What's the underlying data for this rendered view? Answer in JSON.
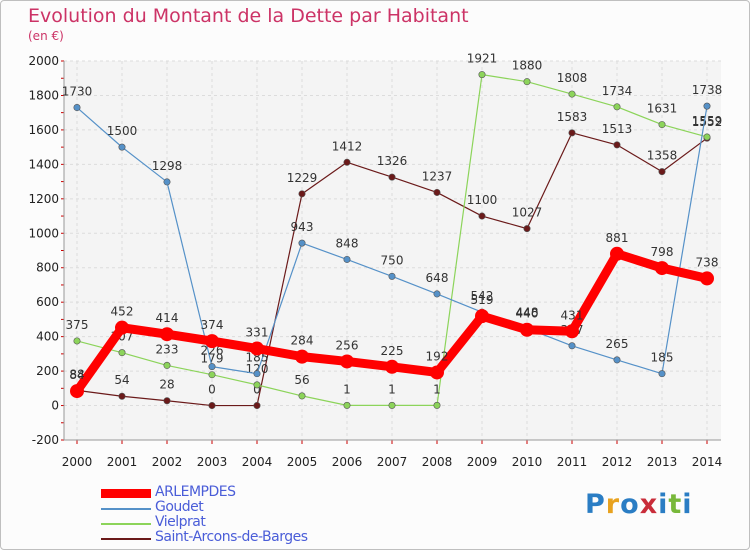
{
  "title": "Evolution du Montant de la Dette par Habitant",
  "subtitle": "(en €)",
  "logo": {
    "letters": [
      {
        "ch": "P",
        "color": "#2a7dc4"
      },
      {
        "ch": "r",
        "color": "#e8a21f"
      },
      {
        "ch": "o",
        "color": "#2a7dc4"
      },
      {
        "ch": "x",
        "color": "#c92d3a"
      },
      {
        "ch": "i",
        "color": "#2a7dc4"
      },
      {
        "ch": "t",
        "color": "#78b83a"
      },
      {
        "ch": "i",
        "color": "#2a7dc4"
      }
    ]
  },
  "chart_data": {
    "type": "line",
    "title": "Evolution du Montant de la Dette par Habitant",
    "subtitle": "(en €)",
    "x": [
      "2000",
      "2001",
      "2002",
      "2003",
      "2004",
      "2005",
      "2006",
      "2007",
      "2008",
      "2009",
      "2010",
      "2011",
      "2012",
      "2013",
      "2014"
    ],
    "ylim": [
      -200,
      2000
    ],
    "yticks": [
      "-200",
      "0",
      "200",
      "400",
      "600",
      "800",
      "1000",
      "1200",
      "1400",
      "1600",
      "1800",
      "2000"
    ],
    "grid": true,
    "legend_position": "bottom-left",
    "series": [
      {
        "name": "Saint-Arcons-de-Barges",
        "color": "#6b1a1a",
        "values": [
          88,
          54,
          28,
          0,
          0,
          1229,
          1412,
          1326,
          1237,
          1100,
          1027,
          1583,
          1513,
          1358,
          1552
        ],
        "labels": [
          "88",
          "54",
          "28",
          "0",
          "0",
          "1229",
          "1412",
          "1326",
          "1237",
          "1100",
          "1027",
          "1583",
          "1513",
          "1358",
          "1552"
        ]
      },
      {
        "name": "Vielprat",
        "color": "#8cd45a",
        "values": [
          375,
          307,
          233,
          179,
          120,
          56,
          1,
          1,
          1,
          1921,
          1880,
          1808,
          1734,
          1631,
          1559
        ],
        "labels": [
          "375",
          "307",
          "233",
          "179",
          "120",
          "56",
          "1",
          "1",
          "1",
          "1921",
          "1880",
          "1808",
          "1734",
          "1631",
          "1559"
        ]
      },
      {
        "name": "Goudet",
        "color": "#5591c8",
        "values": [
          1730,
          1500,
          1298,
          226,
          185,
          943,
          848,
          750,
          648,
          542,
          448,
          347,
          265,
          185,
          1738
        ],
        "labels": [
          "1730",
          "1500",
          "1298",
          "226",
          "185",
          "943",
          "848",
          "750",
          "648",
          "542",
          "448",
          "347",
          "265",
          "185",
          "1738"
        ]
      },
      {
        "name": "ARLEMPDES",
        "color": "#ff0000",
        "values": [
          84,
          452,
          414,
          374,
          331,
          284,
          256,
          225,
          192,
          519,
          440,
          431,
          881,
          798,
          738
        ],
        "labels": [
          "84",
          "452",
          "414",
          "374",
          "331",
          "284",
          "256",
          "225",
          "192",
          "519",
          "440",
          "431",
          "881",
          "798",
          "738"
        ]
      }
    ],
    "legend": [
      "ARLEMPDES",
      "Goudet",
      "Vielprat",
      "Saint-Arcons-de-Barges"
    ]
  }
}
